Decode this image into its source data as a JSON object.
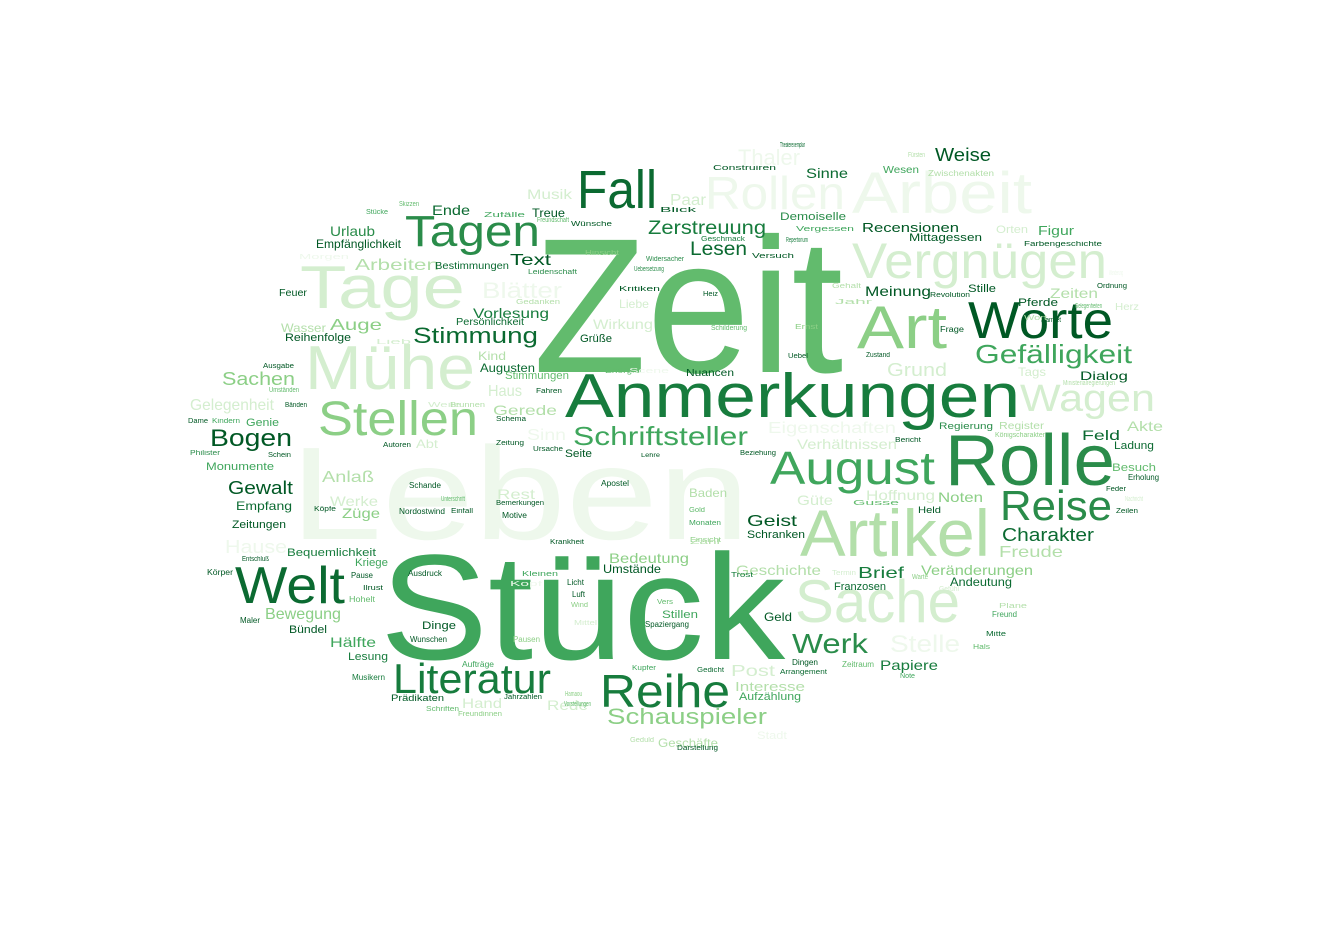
{
  "palette": {
    "background": "#ffffff",
    "shades": [
      "#eef8ec",
      "#d4eecf",
      "#b3dfaa",
      "#8ccf86",
      "#62bb6d",
      "#3fa65c",
      "#2a8c4a",
      "#177c3d",
      "#0b6a31",
      "#005824"
    ]
  },
  "words": [
    {
      "text": "Zeit",
      "shade": 4
    },
    {
      "text": "Stück",
      "shade": 5
    },
    {
      "text": "Leben",
      "shade": 0
    },
    {
      "text": "Anmerkungen",
      "shade": 7
    },
    {
      "text": "Rolle",
      "shade": 6
    },
    {
      "text": "Artikel",
      "shade": 2
    },
    {
      "text": "Sache",
      "shade": 1
    },
    {
      "text": "Arbeit",
      "shade": 0
    },
    {
      "text": "Tage",
      "shade": 1
    },
    {
      "text": "Mühe",
      "shade": 1
    },
    {
      "text": "Vergnügen",
      "shade": 1
    },
    {
      "text": "Rollen",
      "shade": 0
    },
    {
      "text": "Art",
      "shade": 3
    },
    {
      "text": "Worte",
      "shade": 9
    },
    {
      "text": "Fall",
      "shade": 8
    },
    {
      "text": "Tagen",
      "shade": 6
    },
    {
      "text": "Stellen",
      "shade": 3
    },
    {
      "text": "August",
      "shade": 5
    },
    {
      "text": "Reise",
      "shade": 6
    },
    {
      "text": "Welt",
      "shade": 8
    },
    {
      "text": "Literatur",
      "shade": 7
    },
    {
      "text": "Reihe",
      "shade": 7
    },
    {
      "text": "Wagen",
      "shade": 1
    },
    {
      "text": "Schriftsteller",
      "shade": 5
    },
    {
      "text": "Gefälligkeit",
      "shade": 5
    },
    {
      "text": "Werk",
      "shade": 6
    },
    {
      "text": "Schauspieler",
      "shade": 3
    },
    {
      "text": "Stimmung",
      "shade": 8
    },
    {
      "text": "Bogen",
      "shade": 9
    },
    {
      "text": "Stelle",
      "shade": 0
    },
    {
      "text": "Charakter",
      "shade": 8
    },
    {
      "text": "Zerstreuung",
      "shade": 7
    },
    {
      "text": "Lesen",
      "shade": 8
    },
    {
      "text": "Thaler",
      "shade": 0
    },
    {
      "text": "Weise",
      "shade": 9
    },
    {
      "text": "Paar",
      "shade": 1
    },
    {
      "text": "Musik",
      "shade": 1
    },
    {
      "text": "Ende",
      "shade": 8
    },
    {
      "text": "Treue",
      "shade": 9
    },
    {
      "text": "Urlaub",
      "shade": 6
    },
    {
      "text": "Empfänglichkeit",
      "shade": 9
    },
    {
      "text": "Arbeiten",
      "shade": 2
    },
    {
      "text": "Bestimmungen",
      "shade": 8
    },
    {
      "text": "Text",
      "shade": 9
    },
    {
      "text": "Blätter",
      "shade": 0
    },
    {
      "text": "Vorlesung",
      "shade": 7
    },
    {
      "text": "Persönlichkeit",
      "shade": 8
    },
    {
      "text": "Wirkung",
      "shade": 1
    },
    {
      "text": "Auge",
      "shade": 3
    },
    {
      "text": "Wasser",
      "shade": 2
    },
    {
      "text": "Reihenfolge",
      "shade": 9
    },
    {
      "text": "Feuer",
      "shade": 9
    },
    {
      "text": "Kind",
      "shade": 2
    },
    {
      "text": "Augusten",
      "shade": 8
    },
    {
      "text": "Stimmungen",
      "shade": 4
    },
    {
      "text": "Sachen",
      "shade": 3
    },
    {
      "text": "Gelegenheit",
      "shade": 1
    },
    {
      "text": "Haus",
      "shade": 1
    },
    {
      "text": "Gerede",
      "shade": 2
    },
    {
      "text": "Sinn",
      "shade": 0
    },
    {
      "text": "Abt",
      "shade": 1
    },
    {
      "text": "Anlaß",
      "shade": 2
    },
    {
      "text": "Gewalt",
      "shade": 9
    },
    {
      "text": "Werke",
      "shade": 1
    },
    {
      "text": "Züge",
      "shade": 3
    },
    {
      "text": "Empfang",
      "shade": 8
    },
    {
      "text": "Zeitungen",
      "shade": 9
    },
    {
      "text": "Hause",
      "shade": 0
    },
    {
      "text": "Bequemlichkeit",
      "shade": 7
    },
    {
      "text": "Bewegung",
      "shade": 3
    },
    {
      "text": "Hälfte",
      "shade": 5
    },
    {
      "text": "Bündel",
      "shade": 9
    },
    {
      "text": "Lesung",
      "shade": 7
    },
    {
      "text": "Dinge",
      "shade": 9
    },
    {
      "text": "Rest",
      "shade": 1
    },
    {
      "text": "Baden",
      "shade": 2
    },
    {
      "text": "Geist",
      "shade": 9
    },
    {
      "text": "Schranken",
      "shade": 9
    },
    {
      "text": "Bedeutung",
      "shade": 3
    },
    {
      "text": "Umstände",
      "shade": 9
    },
    {
      "text": "Geschichte",
      "shade": 2
    },
    {
      "text": "Stillen",
      "shade": 5
    },
    {
      "text": "Geld",
      "shade": 9
    },
    {
      "text": "Brief",
      "shade": 7
    },
    {
      "text": "Franzosen",
      "shade": 8
    },
    {
      "text": "Veränderungen",
      "shade": 3
    },
    {
      "text": "Andeutung",
      "shade": 8
    },
    {
      "text": "Freude",
      "shade": 2
    },
    {
      "text": "Noten",
      "shade": 3
    },
    {
      "text": "Hoffnung",
      "shade": 1
    },
    {
      "text": "Güte",
      "shade": 1
    },
    {
      "text": "Verhältnissen",
      "shade": 1
    },
    {
      "text": "Eigenschaften",
      "shade": 0
    },
    {
      "text": "Post",
      "shade": 1
    },
    {
      "text": "Interesse",
      "shade": 2
    },
    {
      "text": "Aufzählung",
      "shade": 5
    },
    {
      "text": "Rede",
      "shade": 1
    },
    {
      "text": "Hand",
      "shade": 1
    },
    {
      "text": "Geschäfte",
      "shade": 2
    },
    {
      "text": "Stadt",
      "shade": 0
    },
    {
      "text": "Papiere",
      "shade": 7
    },
    {
      "text": "Nuancen",
      "shade": 9
    },
    {
      "text": "Grund",
      "shade": 1
    },
    {
      "text": "Meinung",
      "shade": 9
    },
    {
      "text": "Stille",
      "shade": 9
    },
    {
      "text": "Pferde",
      "shade": 9
    },
    {
      "text": "Zeiten",
      "shade": 2
    },
    {
      "text": "Dialog",
      "shade": 9
    },
    {
      "text": "Feld",
      "shade": 8
    },
    {
      "text": "Akte",
      "shade": 2
    },
    {
      "text": "Herz",
      "shade": 1
    },
    {
      "text": "Besuch",
      "shade": 4
    },
    {
      "text": "Ladung",
      "shade": 8
    },
    {
      "text": "Recensionen",
      "shade": 9
    },
    {
      "text": "Mittagessen",
      "shade": 9
    },
    {
      "text": "Figur",
      "shade": 5
    },
    {
      "text": "Orten",
      "shade": 1
    },
    {
      "text": "Demoiselle",
      "shade": 6
    },
    {
      "text": "Sinne",
      "shade": 8
    },
    {
      "text": "Wesen",
      "shade": 5
    },
    {
      "text": "Grüße",
      "shade": 9
    },
    {
      "text": "Liebe",
      "shade": 1
    },
    {
      "text": "Tags",
      "shade": 1
    },
    {
      "text": "Seite",
      "shade": 9
    },
    {
      "text": "Apostel",
      "shade": 9
    },
    {
      "text": "Nordostwind",
      "shade": 9
    },
    {
      "text": "Einfall",
      "shade": 9
    },
    {
      "text": "Motive",
      "shade": 9
    },
    {
      "text": "Schande",
      "shade": 9
    },
    {
      "text": "Bemerkungen",
      "shade": 9
    },
    {
      "text": "Krankheit",
      "shade": 9
    },
    {
      "text": "Zeitung",
      "shade": 9
    },
    {
      "text": "Ursache",
      "shade": 9
    },
    {
      "text": "Fahren",
      "shade": 9
    },
    {
      "text": "Beziehung",
      "shade": 9
    },
    {
      "text": "Genie",
      "shade": 5
    },
    {
      "text": "Monumente",
      "shade": 5
    },
    {
      "text": "Kriege",
      "shade": 5
    },
    {
      "text": "Pause",
      "shade": 9
    },
    {
      "text": "Ausdruck",
      "shade": 9
    },
    {
      "text": "Körper",
      "shade": 9
    },
    {
      "text": "Maler",
      "shade": 9
    },
    {
      "text": "Hohelt",
      "shade": 4
    },
    {
      "text": "Wunschen",
      "shade": 9
    },
    {
      "text": "Aufträge",
      "shade": 5
    },
    {
      "text": "Musikern",
      "shade": 7
    },
    {
      "text": "Prädikaten",
      "shade": 9
    },
    {
      "text": "Jahrzahlen",
      "shade": 9
    },
    {
      "text": "Freundinnen",
      "shade": 3
    },
    {
      "text": "Schriften",
      "shade": 4
    },
    {
      "text": "Kupfer",
      "shade": 5
    },
    {
      "text": "Gedicht",
      "shade": 8
    },
    {
      "text": "Arrangement",
      "shade": 8
    },
    {
      "text": "Dingen",
      "shade": 9
    },
    {
      "text": "Zeitraum",
      "shade": 4
    },
    {
      "text": "Note",
      "shade": 5
    },
    {
      "text": "Darstellung",
      "shade": 9
    },
    {
      "text": "Mitte",
      "shade": 8
    },
    {
      "text": "Hals",
      "shade": 4
    },
    {
      "text": "Freund",
      "shade": 5
    },
    {
      "text": "Spaziergang",
      "shade": 9
    },
    {
      "text": "Pausen",
      "shade": 3
    },
    {
      "text": "Licht",
      "shade": 9
    },
    {
      "text": "Luft",
      "shade": 9
    },
    {
      "text": "Wind",
      "shade": 3
    },
    {
      "text": "Vers",
      "shade": 4
    },
    {
      "text": "Held",
      "shade": 9
    },
    {
      "text": "Trost",
      "shade": 7
    },
    {
      "text": "Gold",
      "shade": 4
    },
    {
      "text": "Monaten",
      "shade": 5
    },
    {
      "text": "Energie",
      "shade": 4
    },
    {
      "text": "Lehre",
      "shade": 9
    },
    {
      "text": "Heiz",
      "shade": 9
    },
    {
      "text": "Uebel",
      "shade": 9
    },
    {
      "text": "Frage",
      "shade": 9
    },
    {
      "text": "Revolution",
      "shade": 9
    },
    {
      "text": "Ordnung",
      "shade": 9
    },
    {
      "text": "Regierung",
      "shade": 6
    },
    {
      "text": "Register",
      "shade": 2
    },
    {
      "text": "Erholung",
      "shade": 9
    },
    {
      "text": "Zeilen",
      "shade": 9
    },
    {
      "text": "Feder",
      "shade": 9
    },
    {
      "text": "Bericht",
      "shade": 9
    },
    {
      "text": "Ausgabe",
      "shade": 9
    },
    {
      "text": "Dame",
      "shade": 9
    },
    {
      "text": "Philister",
      "shade": 6
    },
    {
      "text": "Kindern",
      "shade": 5
    },
    {
      "text": "Autoren",
      "shade": 9
    },
    {
      "text": "Schein",
      "shade": 9
    },
    {
      "text": "Köpfe",
      "shade": 9
    },
    {
      "text": "Ilrust",
      "shade": 9
    },
    {
      "text": "Bänden",
      "shade": 9
    },
    {
      "text": "Schema",
      "shade": 9
    },
    {
      "text": "Entschluß",
      "shade": 9
    },
    {
      "text": "Umständen",
      "shade": 4
    },
    {
      "text": "Skizzen",
      "shade": 4
    },
    {
      "text": "Stücke",
      "shade": 5
    },
    {
      "text": "Zufälle",
      "shade": 5
    },
    {
      "text": "Freundschaft",
      "shade": 4
    },
    {
      "text": "Wünsche",
      "shade": 9
    },
    {
      "text": "Construiren",
      "shade": 9
    },
    {
      "text": "Theaterexemplar",
      "shade": 8
    },
    {
      "text": "Fürsten",
      "shade": 2
    },
    {
      "text": "Blick",
      "shade": 9
    },
    {
      "text": "Geschmack",
      "shade": 7
    },
    {
      "text": "Repertorium",
      "shade": 7
    },
    {
      "text": "Versuch",
      "shade": 9
    },
    {
      "text": "Widersacher",
      "shade": 6
    },
    {
      "text": "Leidenschaft",
      "shade": 6
    },
    {
      "text": "Uebersetzung",
      "shade": 6
    },
    {
      "text": "Kritiken",
      "shade": 9
    },
    {
      "text": "Schilderung",
      "shade": 4
    },
    {
      "text": "Gedanken",
      "shade": 2
    },
    {
      "text": "Farbengeschichte",
      "shade": 9
    },
    {
      "text": "Ministerialregierungen",
      "shade": 2
    },
    {
      "text": "Zwischenakten",
      "shade": 2
    },
    {
      "text": "Wanderung",
      "shade": 0
    },
    {
      "text": "Jahr",
      "shade": 2
    },
    {
      "text": "Gehalt",
      "shade": 2
    },
    {
      "text": "Zustand",
      "shade": 9
    },
    {
      "text": "Gefühl",
      "shade": 1
    },
    {
      "text": "Plane",
      "shade": 2
    },
    {
      "text": "Termin",
      "shade": 1
    },
    {
      "text": "Warte",
      "shade": 3
    },
    {
      "text": "Gusse",
      "shade": 4
    },
    {
      "text": "Vergessen",
      "shade": 5
    },
    {
      "text": "Königscharakter",
      "shade": 3
    },
    {
      "text": "Gelegenheiten",
      "shade": 4
    },
    {
      "text": "Einsicht",
      "shade": 3
    },
    {
      "text": "Hamlet",
      "shade": 9
    },
    {
      "text": "Ernst",
      "shade": 3
    },
    {
      "text": "Kleinen",
      "shade": 5
    },
    {
      "text": "Zahl",
      "shade": 2
    },
    {
      "text": "Morgen",
      "shade": 0
    },
    {
      "text": "Hinsicht",
      "shade": 3
    },
    {
      "text": "Nachricht",
      "shade": 1
    },
    {
      "text": "Hamaou",
      "shade": 3
    },
    {
      "text": "Vorstellungen",
      "shade": 4
    },
    {
      "text": "Mittel",
      "shade": 1
    },
    {
      "text": "Scene",
      "shade": 0
    },
    {
      "text": "Kopf",
      "shade": 0
    },
    {
      "text": "Wort",
      "shade": 2
    },
    {
      "text": "Geduld",
      "shade": 2
    },
    {
      "text": "Weile",
      "shade": 1
    },
    {
      "text": "Unterschrift",
      "shade": 4
    },
    {
      "text": "Brunnen",
      "shade": 2
    },
    {
      "text": "Lieb",
      "shade": 1
    },
    {
      "text": "Nähe",
      "shade": 1
    },
    {
      "text": "Papier",
      "shade": 2
    },
    {
      "text": "Diction",
      "shade": 3
    },
    {
      "text": "Gerede",
      "shade": 1
    },
    {
      "text": "Tageszeit",
      "shade": 3
    },
    {
      "text": "Stimmung",
      "shade": 1
    }
  ]
}
